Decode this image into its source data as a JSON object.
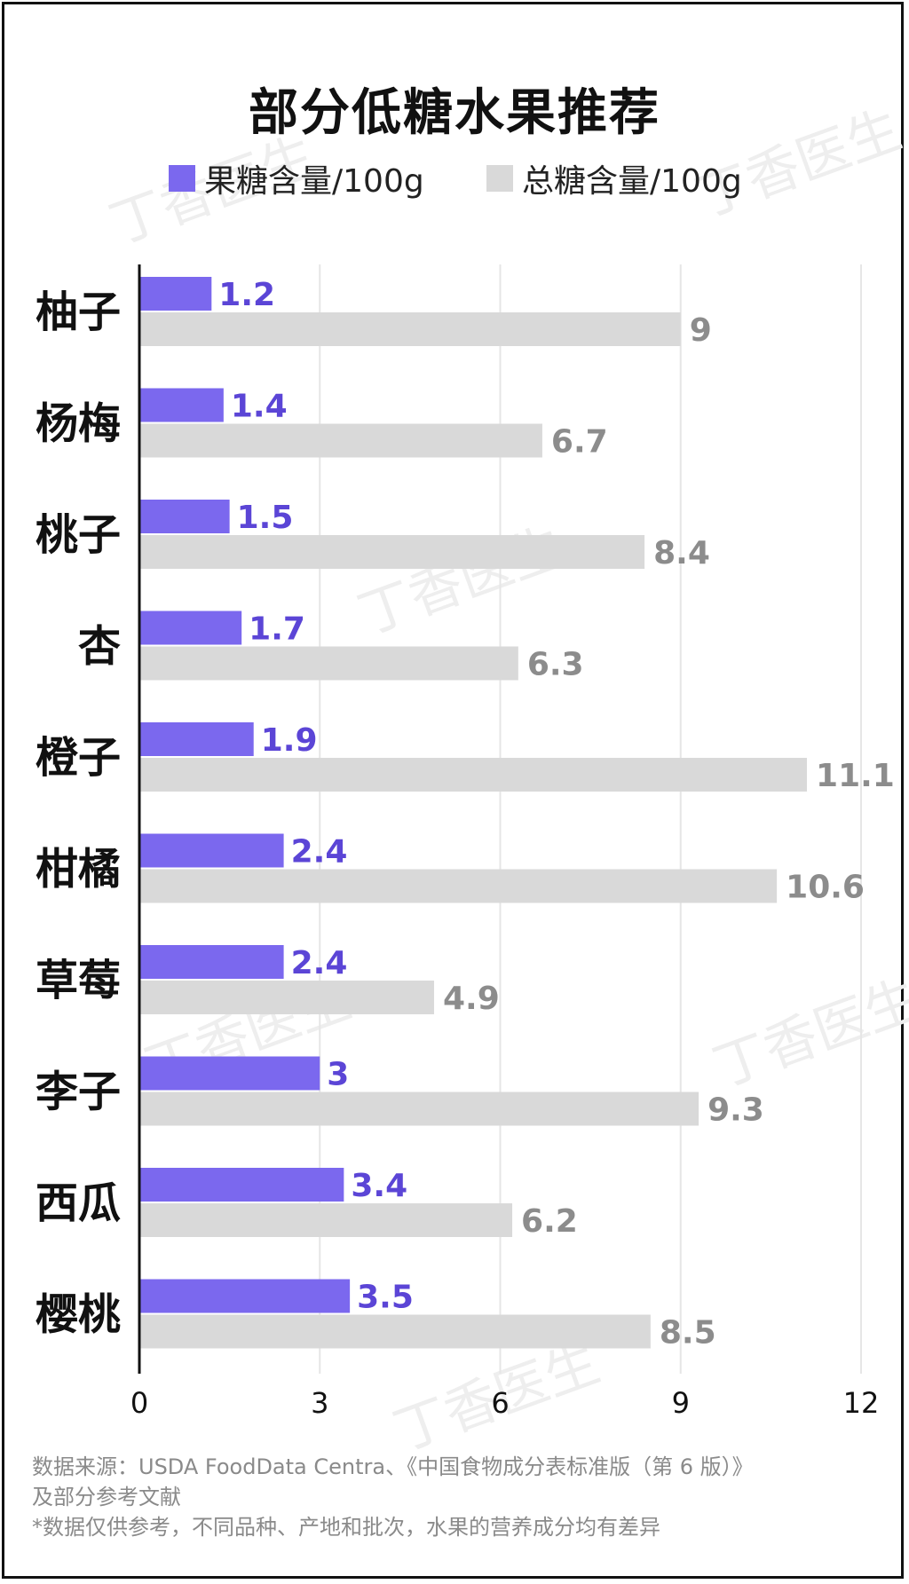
{
  "watermark": "丁香医生",
  "colors": {
    "fructose": "#7B68EE",
    "fructose_label": "#5B45D6",
    "total": "#D9D9D9",
    "total_label": "#8C8C8C",
    "axis": "#111111",
    "grid": "#E6E6E6"
  },
  "chart_data": {
    "type": "bar",
    "orientation": "horizontal",
    "title": "部分低糖水果推荐",
    "categories": [
      "柚子",
      "杨梅",
      "桃子",
      "杏",
      "橙子",
      "柑橘",
      "草莓",
      "李子",
      "西瓜",
      "樱桃"
    ],
    "series": [
      {
        "name": "果糖含量/100g",
        "values": [
          1.2,
          1.4,
          1.5,
          1.7,
          1.9,
          2.4,
          2.4,
          3,
          3.4,
          3.5
        ]
      },
      {
        "name": "总糖含量/100g",
        "values": [
          9,
          6.7,
          8.4,
          6.3,
          11.1,
          10.6,
          4.9,
          9.3,
          6.2,
          8.5
        ]
      }
    ],
    "x_ticks": [
      "0",
      "3",
      "6",
      "9",
      "12"
    ],
    "xlim": [
      0,
      12
    ],
    "grid": true,
    "legend": "top"
  },
  "source": {
    "line1": "数据来源：USDA FoodData Centra、《中国食物成分表标准版（第 6 版）》",
    "line2": "及部分参考文献",
    "line3": "*数据仅供参考，不同品种、产地和批次，水果的营养成分均有差异"
  }
}
